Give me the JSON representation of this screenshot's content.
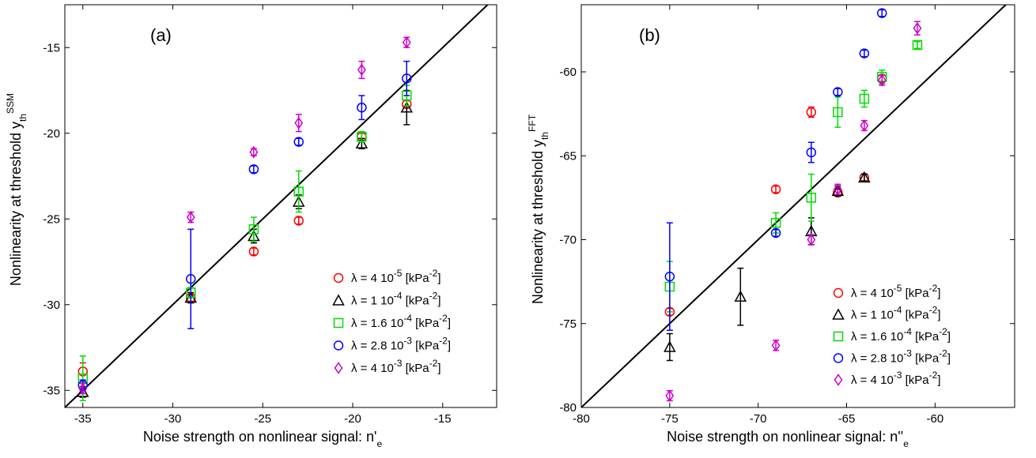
{
  "chart_data": [
    {
      "type": "scatter",
      "panel_label": "(a)",
      "xlabel": "Noise strength on nonlinear signal: n'",
      "xlabel_sub": "e",
      "ylabel": "Nonlinearity at threshold y",
      "ylabel_sub": "th",
      "ylabel_sup": "SSM",
      "xlim": [
        -36,
        -12
      ],
      "ylim": [
        -36,
        -12.5
      ],
      "xticks": [
        -35,
        -30,
        -25,
        -20,
        -15
      ],
      "yticks": [
        -35,
        -30,
        -25,
        -20,
        -15
      ],
      "reference_line": {
        "x": [
          -36,
          -12
        ],
        "y": [
          -36,
          -12
        ]
      },
      "legend_position": "bottom-right",
      "series": [
        {
          "name": "λ = 4 10-5 [kPa-2]",
          "label_main": "λ = 4 10",
          "label_exp": "-5",
          "label_unit": " [kPa",
          "label_unit_exp": "-2",
          "color": "#ff0000",
          "marker": "circle",
          "x": [
            -35,
            -29,
            -25.5,
            -23,
            -19.5,
            -17
          ],
          "y": [
            -33.9,
            -29.6,
            -26.9,
            -25.1,
            -20.2,
            -18.3
          ],
          "err": [
            0.5,
            0.2,
            0.2,
            0.2,
            0.2,
            0.2
          ]
        },
        {
          "name": "λ = 1 10-4 [kPa-2]",
          "label_main": "λ = 1 10",
          "label_exp": "-4",
          "label_unit": " [kPa",
          "label_unit_exp": "-2",
          "color": "#000000",
          "marker": "triangle",
          "x": [
            -35,
            -29,
            -25.5,
            -23,
            -19.5,
            -17
          ],
          "y": [
            -35.1,
            -29.6,
            -26.0,
            -24.0,
            -20.6,
            -18.5
          ],
          "err": [
            0.3,
            0.3,
            0.4,
            0.4,
            0.3,
            1.0
          ]
        },
        {
          "name": "λ = 1.6 10-4 [kPa-2]",
          "label_main": "λ = 1.6 10",
          "label_exp": "-4",
          "label_unit": " [kPa",
          "label_unit_exp": "-2",
          "color": "#00dd00",
          "marker": "square",
          "x": [
            -35,
            -29,
            -25.5,
            -23,
            -19.5,
            -17
          ],
          "y": [
            -34.3,
            -29.3,
            -25.6,
            -23.4,
            -20.2,
            -17.8
          ],
          "err": [
            1.3,
            0.3,
            0.7,
            1.2,
            0.3,
            0.6
          ]
        },
        {
          "name": "λ = 2.8 10-3 [kPa-2]",
          "label_main": "λ = 2.8 10",
          "label_exp": "-3",
          "label_unit": " [kPa",
          "label_unit_exp": "-2",
          "color": "#0000ff",
          "marker": "circle",
          "x": [
            -35,
            -29,
            -25.5,
            -23,
            -19.5,
            -17
          ],
          "y": [
            -34.7,
            -28.5,
            -22.1,
            -20.5,
            -18.5,
            -16.8
          ],
          "err": [
            0.3,
            2.9,
            0.2,
            0.2,
            0.7,
            1.0
          ]
        },
        {
          "name": "λ = 4 10-3 [kPa-2]",
          "label_main": "λ = 4 10",
          "label_exp": "-3",
          "label_unit": " [kPa",
          "label_unit_exp": "-2",
          "color": "#cc00cc",
          "marker": "diamond",
          "x": [
            -35,
            -29,
            -25.5,
            -23,
            -19.5,
            -17
          ],
          "y": [
            -34.9,
            -24.9,
            -21.1,
            -19.4,
            -16.3,
            -14.7
          ],
          "err": [
            0.3,
            0.3,
            0.2,
            0.5,
            0.5,
            0.3
          ]
        }
      ]
    },
    {
      "type": "scatter",
      "panel_label": "(b)",
      "xlabel": "Noise strength on nonlinear signal: n''",
      "xlabel_sub": "e",
      "ylabel": "Nonlinearity at threshold y",
      "ylabel_sub": "th",
      "ylabel_sup": "FFT",
      "xlim": [
        -80,
        -55.5
      ],
      "ylim": [
        -80,
        -56
      ],
      "xticks": [
        -80,
        -75,
        -70,
        -65,
        -60
      ],
      "yticks": [
        -80,
        -75,
        -70,
        -65,
        -60
      ],
      "reference_line": {
        "x": [
          -80,
          -55.5
        ],
        "y": [
          -80,
          -55.5
        ]
      },
      "legend_position": "bottom-right",
      "series": [
        {
          "name": "λ = 4 10-5 [kPa-2]",
          "label_main": "λ = 4 10",
          "label_exp": "-5",
          "label_unit": " [kPa",
          "label_unit_exp": "-2",
          "color": "#ff0000",
          "marker": "circle",
          "x": [
            -75,
            -69,
            -67,
            -65.5,
            -64,
            -63
          ],
          "y": [
            -74.3,
            -67.0,
            -62.4,
            -67.2,
            -66.3,
            -60.4
          ],
          "err": [
            0.2,
            0.2,
            0.3,
            0.2,
            0.2,
            0.2
          ]
        },
        {
          "name": "λ = 1 10-4 [kPa-2]",
          "label_main": "λ = 1 10",
          "label_exp": "-4",
          "label_unit": " [kPa",
          "label_unit_exp": "-2",
          "color": "#000000",
          "marker": "triangle",
          "x": [
            -75,
            -71,
            -67,
            -65.5,
            -64
          ],
          "y": [
            -76.4,
            -73.4,
            -69.5,
            -67.1,
            -66.3
          ],
          "err": [
            0.8,
            1.7,
            0.8,
            0.3,
            0.2
          ]
        },
        {
          "name": "λ = 1.6 10-4 [kPa-2]",
          "label_main": "λ = 1.6 10",
          "label_exp": "-4",
          "label_unit": " [kPa",
          "label_unit_exp": "-2",
          "color": "#00dd00",
          "marker": "square",
          "x": [
            -75,
            -69,
            -67,
            -65.5,
            -64,
            -63,
            -61
          ],
          "y": [
            -72.8,
            -69.0,
            -67.5,
            -62.4,
            -61.6,
            -60.3,
            -58.4
          ],
          "err": [
            1.5,
            0.6,
            1.4,
            0.9,
            0.5,
            0.4,
            0.2
          ]
        },
        {
          "name": "λ = 2.8 10-3 [kPa-2]",
          "label_main": "λ = 2.8 10",
          "label_exp": "-3",
          "label_unit": " [kPa",
          "label_unit_exp": "-2",
          "color": "#0000ff",
          "marker": "circle",
          "x": [
            -75,
            -69,
            -67,
            -65.5,
            -64,
            -63
          ],
          "y": [
            -72.2,
            -69.6,
            -64.8,
            -61.2,
            -58.9,
            -56.5
          ],
          "err": [
            3.2,
            0.2,
            0.6,
            0.2,
            0.2,
            0.2
          ]
        },
        {
          "name": "λ = 4 10-3 [kPa-2]",
          "label_main": "λ = 4 10",
          "label_exp": "-3",
          "label_unit": " [kPa",
          "label_unit_exp": "-2",
          "color": "#cc00cc",
          "marker": "diamond",
          "x": [
            -75,
            -69,
            -67,
            -65.5,
            -64,
            -63,
            -61
          ],
          "y": [
            -79.3,
            -76.3,
            -70.0,
            -67.0,
            -63.2,
            -60.5,
            -57.4
          ],
          "err": [
            0.3,
            0.3,
            0.3,
            0.3,
            0.3,
            0.3,
            0.4
          ]
        }
      ]
    }
  ]
}
